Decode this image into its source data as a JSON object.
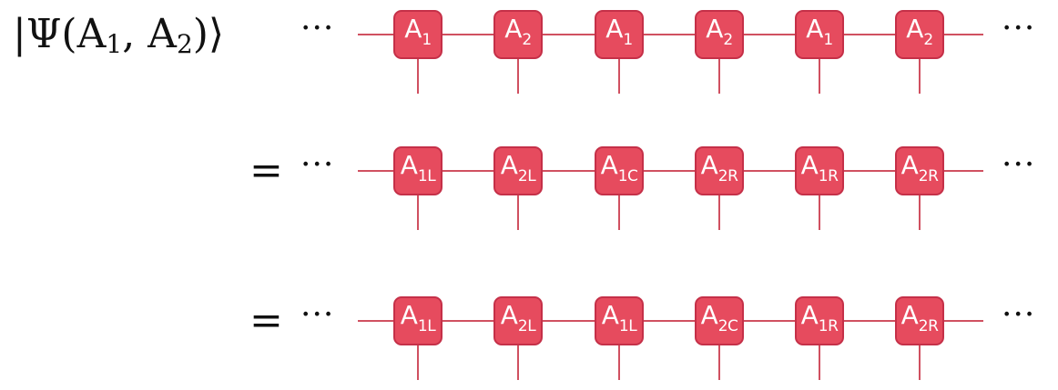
{
  "lhs": {
    "psi": "|Ψ(A",
    "sub1": "1",
    "comma": ", A",
    "sub2": "2",
    "close": ")⟩"
  },
  "equals": "=",
  "ellipsis": "···",
  "rows": [
    {
      "tensors": [
        {
          "label": "A",
          "sub": "1"
        },
        {
          "label": "A",
          "sub": "2"
        },
        {
          "label": "A",
          "sub": "1"
        },
        {
          "label": "A",
          "sub": "2"
        },
        {
          "label": "A",
          "sub": "1"
        },
        {
          "label": "A",
          "sub": "2"
        }
      ]
    },
    {
      "tensors": [
        {
          "label": "A",
          "sub": "1L"
        },
        {
          "label": "A",
          "sub": "2L"
        },
        {
          "label": "A",
          "sub": "1C"
        },
        {
          "label": "A",
          "sub": "2R"
        },
        {
          "label": "A",
          "sub": "1R"
        },
        {
          "label": "A",
          "sub": "2R"
        }
      ]
    },
    {
      "tensors": [
        {
          "label": "A",
          "sub": "1L"
        },
        {
          "label": "A",
          "sub": "2L"
        },
        {
          "label": "A",
          "sub": "1L"
        },
        {
          "label": "A",
          "sub": "2C"
        },
        {
          "label": "A",
          "sub": "1R"
        },
        {
          "label": "A",
          "sub": "2R"
        }
      ]
    }
  ]
}
